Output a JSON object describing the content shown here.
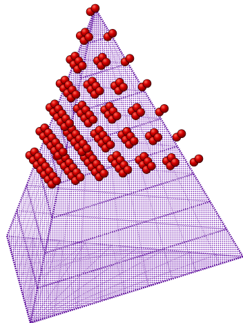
{
  "scene": {
    "subject": "lattice-pyramid",
    "colors": {
      "background": "#ffffff",
      "lattice": "#6a0dad",
      "lattice_edge": "#5a0a99",
      "sphere": "#d40000",
      "sphere_shade": "#6b0000",
      "sphere_highlight": "#ff6a5a"
    },
    "lattice_levels": 9,
    "sphere_levels": 7
  }
}
